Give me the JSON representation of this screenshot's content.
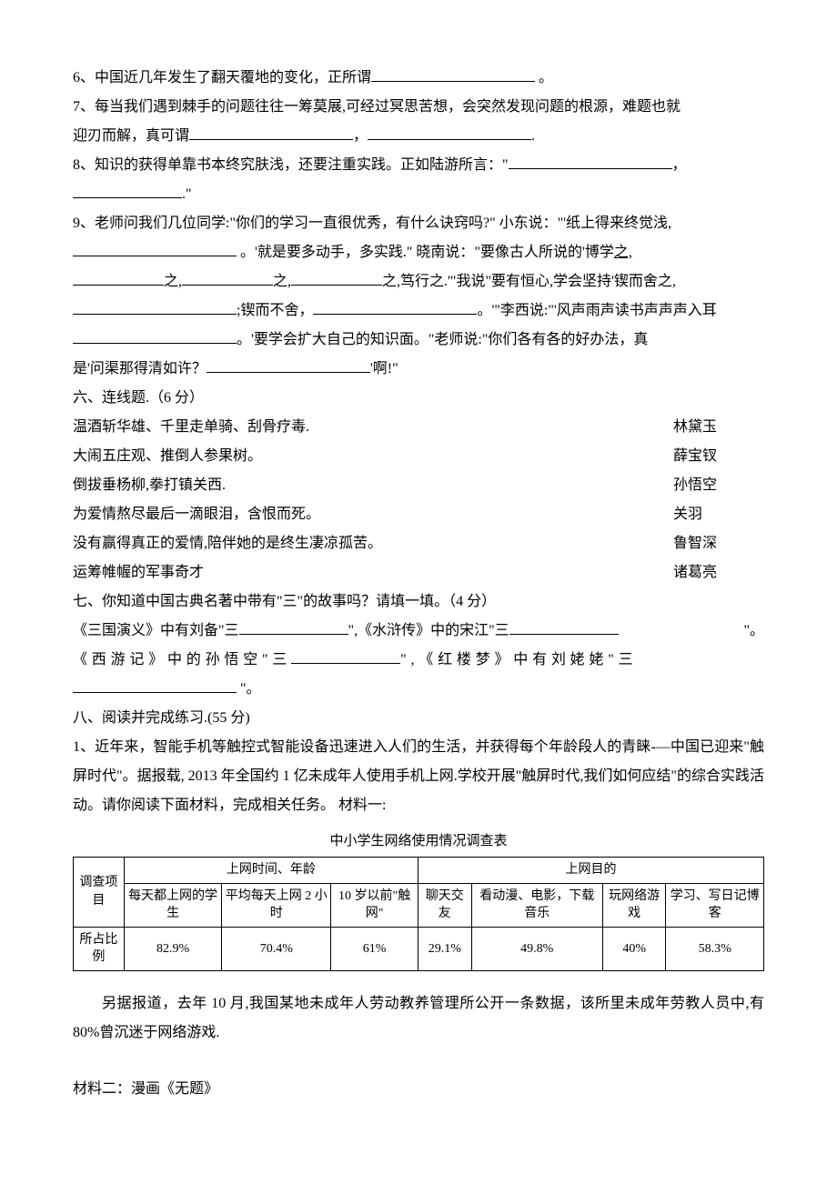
{
  "q6": {
    "prefix": "6、中国近几年发生了翻天覆地的变化，正所谓",
    "suffix": " 。"
  },
  "q7": {
    "l1": "7、每当我们遇到棘手的问题往往一筹莫展,可经过冥思苦想，会突然发现问题的根源，难题也就",
    "l2a": "迎刃而解，真可谓",
    "sep": "，",
    "end": "."
  },
  "q8": {
    "l1a": "8、知识的获得单靠书本终究肤浅，还要注重实践。正如陆游所言：\"",
    "sep": "，",
    "l2end": ".\""
  },
  "q9": {
    "l1": "9、老师问我们几位同学:\"你们的学习一直很优秀，有什么诀窍吗?\" 小东说：\"'纸上得来终觉浅,",
    "l2a": " 。'就是要多动手，多实践.\" 晓南说：\"要像古人所说的'博学",
    "zhi": "之,",
    "l3b": "之,笃行之.'\"我说\"要有恒心,学会坚持'锲而舍之,",
    "l4a": ";锲而不舍，",
    "l4b": "。'\"李西说:\"'风声雨声读书声声声入耳",
    "l5a": "。'要学会扩大自己的知识面。\"老师说:\"你们各有各的好办法，真",
    "l6a": "是'问渠那得清如许？",
    "l6b": "'啊!\""
  },
  "s6": {
    "title": "六、连线题.（6 分）",
    "rows": [
      [
        "温酒斩华雄、千里走单骑、刮骨疗毒.",
        "林黛玉"
      ],
      [
        "大闹五庄观、推倒人参果树。",
        "薛宝钗"
      ],
      [
        "倒拔垂杨柳,拳打镇关西.",
        "孙悟空"
      ],
      [
        "为爱情熬尽最后一滴眼泪，含恨而死。",
        "关羽"
      ],
      [
        "没有赢得真正的爱情,陪伴她的是终生凄凉孤苦。",
        "鲁智深"
      ],
      [
        "运筹帷幄的军事奇才",
        "诸葛亮"
      ]
    ]
  },
  "s7": {
    "title": "七、你知道中国古典名著中带有\"三\"的故事吗？请填一填。（4 分）",
    "l1a": "《三国演义》中有刘备\"三",
    "l1b": "\",《水浒传》中的宋江\"三",
    "l1c": "\"。",
    "l2a": "《西游记》中的孙悟空\"三",
    "l2b": "\",《红楼梦》中有刘姥姥\"三",
    "l2c": " \"。"
  },
  "s8": {
    "title": "八、阅读并完成练习.(55 分)",
    "p1": "1、近年来，智能手机等触控式智能设备迅速进入人们的生活，并获得每个年龄段人的青睐-—中国已迎来\"触屏时代\"。据报载, 2013 年全国约 1 亿未成年人使用手机上网.学校开展\"触屏时代,我们如何应结\"的综合实践活动。请你阅读下面材料，完成相关任务。 材料一:"
  },
  "table": {
    "title": "中小学生网络使用情况调查表",
    "header_group1": "上网时间、年龄",
    "header_group2": "上网目的",
    "row_label1": "调查项目",
    "row_label2": "所占比例",
    "cols": [
      "每天都上网的学生",
      "平均每天上网 2 小时",
      "10 岁以前\"触网\"",
      "聊天交友",
      "看动漫、电影，下载音乐",
      "玩网络游戏",
      "学习、写日记博客"
    ],
    "vals": [
      "82.9%",
      "70.4%",
      "61%",
      "29.1%",
      "49.8%",
      "40%",
      "58.3%"
    ]
  },
  "after_table": "另据报道，去年 10 月,我国某地未成年人劳动教养管理所公开一条数据，该所里未成年劳教人员中,有 80%曾沉迷于网络游戏.",
  "material2": "材料二：漫画《无题》"
}
